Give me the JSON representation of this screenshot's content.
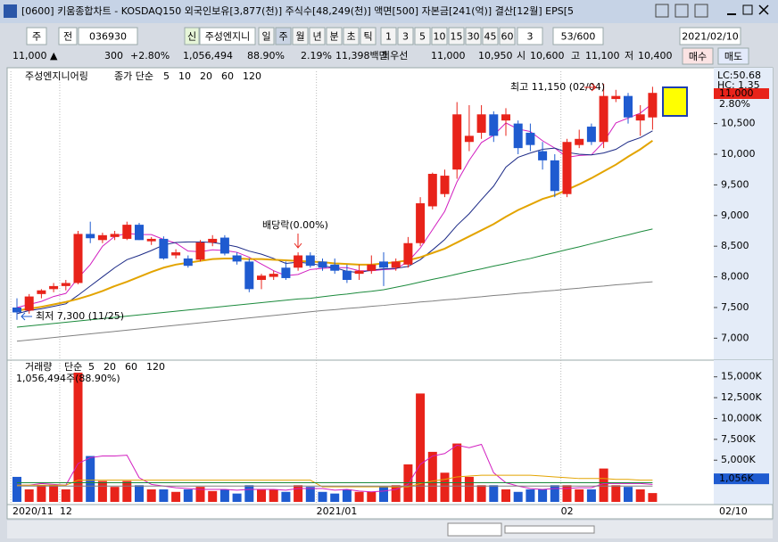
{
  "window": {
    "title": "[0600] 키움종합차트 - KOSDAQ150 외국인보유[3,877(천)] 주식수[48,249(천)] 액면[500] 자본금[241(억)] 결산[12월] EPS[5"
  },
  "toolbar": {
    "period": "주",
    "prev": "전",
    "code": "036930",
    "credit": "신",
    "name": "주성엔지니",
    "intervals": [
      "일",
      "주",
      "월",
      "년",
      "분",
      "초",
      "틱"
    ],
    "minutes": [
      "1",
      "3",
      "5",
      "10",
      "15",
      "30",
      "45",
      "60"
    ],
    "count_input": "3",
    "count": "53/600",
    "date": "2021/02/10"
  },
  "info": {
    "price": "11,000 ▲",
    "change": "300",
    "rate": "+2.80%",
    "volume": "1,056,494",
    "vol_rate": "88.90%",
    "turnover": "2.19%",
    "amount": "11,398백만",
    "best_label": "최우선",
    "ask": "11,000",
    "bid": "10,950",
    "open_label": "시",
    "open": "10,600",
    "high_label": "고",
    "high": "11,100",
    "low_label": "저",
    "low": "10,400",
    "buy": "매수",
    "sell": "매도"
  },
  "chart_data": [
    {
      "type": "candlestick",
      "name": "주성엔지니어링",
      "ma_label": "종가 단순",
      "up_color": "#e8231a",
      "down_color": "#1f5bd0",
      "categories": [
        "2020/11",
        null,
        null,
        null,
        "12",
        null,
        null,
        null,
        null,
        null,
        null,
        null,
        null,
        null,
        null,
        null,
        null,
        null,
        null,
        null,
        null,
        null,
        null,
        null,
        null,
        "2021/01",
        null,
        null,
        null,
        null,
        null,
        null,
        null,
        null,
        null,
        null,
        null,
        null,
        null,
        null,
        null,
        null,
        null,
        null,
        null,
        "02",
        null,
        null,
        null,
        null,
        null,
        null,
        null
      ],
      "open": [
        7500,
        7450,
        7720,
        7800,
        7850,
        7900,
        8700,
        8600,
        8650,
        8620,
        8850,
        8580,
        8620,
        8350,
        8300,
        8280,
        8560,
        8640,
        8350,
        8250,
        7950,
        8000,
        8150,
        8150,
        8350,
        8250,
        8200,
        8100,
        8050,
        8100,
        8250,
        8150,
        8200,
        8550,
        9150,
        9350,
        9750,
        10200,
        10350,
        10650,
        10550,
        10500,
        10350,
        10050,
        9900,
        9350,
        10150,
        10450,
        10200,
        10900,
        10950,
        10550,
        10600
      ],
      "high": [
        7650,
        7720,
        7800,
        7900,
        7950,
        8750,
        8900,
        8720,
        8750,
        8900,
        8880,
        8650,
        8660,
        8450,
        8350,
        8600,
        8680,
        8680,
        8400,
        8300,
        8050,
        8100,
        8250,
        8400,
        8400,
        8300,
        8300,
        8200,
        8200,
        8350,
        8400,
        8300,
        8650,
        9300,
        9700,
        9750,
        10850,
        10800,
        10800,
        10700,
        10750,
        10550,
        10500,
        10200,
        10000,
        10250,
        10400,
        10500,
        11150,
        11050,
        11000,
        10800,
        11100
      ],
      "low": [
        7300,
        7400,
        7650,
        7750,
        7780,
        7880,
        8550,
        8550,
        8600,
        8600,
        8600,
        8520,
        8280,
        8300,
        8150,
        8250,
        8500,
        8350,
        8200,
        7750,
        7800,
        7950,
        7950,
        8100,
        8150,
        8100,
        8050,
        7900,
        7950,
        8050,
        7850,
        8100,
        8150,
        8500,
        9100,
        9300,
        9600,
        10050,
        10250,
        10200,
        10300,
        10000,
        10050,
        9750,
        9300,
        9300,
        10100,
        10150,
        10100,
        10850,
        10500,
        10300,
        10400
      ],
      "close": [
        7420,
        7680,
        7780,
        7850,
        7900,
        8700,
        8630,
        8680,
        8700,
        8850,
        8600,
        8620,
        8300,
        8400,
        8180,
        8560,
        8620,
        8380,
        8250,
        7800,
        8020,
        8050,
        7980,
        8350,
        8180,
        8150,
        8100,
        7950,
        8100,
        8200,
        8150,
        8250,
        8550,
        9200,
        9680,
        9650,
        10650,
        10300,
        10650,
        10300,
        10650,
        10100,
        10150,
        9900,
        9400,
        10200,
        10250,
        10200,
        10950,
        10950,
        10600,
        10650,
        11000
      ],
      "series": [
        {
          "name": "5",
          "color": "#d21fc0",
          "values": [
            7500,
            7550,
            7600,
            7680,
            7730,
            7980,
            8200,
            8500,
            8660,
            8710,
            8690,
            8690,
            8610,
            8550,
            8420,
            8410,
            8440,
            8430,
            8400,
            8320,
            8210,
            8100,
            8020,
            8040,
            8120,
            8140,
            8150,
            8150,
            8100,
            8100,
            8120,
            8130,
            8250,
            8470,
            8770,
            9070,
            9550,
            9900,
            10190,
            10310,
            10510,
            10410,
            10370,
            10220,
            10100,
            9950,
            9980,
            9990,
            10200,
            10510,
            10590,
            10670,
            10830
          ]
        },
        {
          "name": "10",
          "color": "#1c2a86",
          "values": [
            7400,
            7450,
            7480,
            7520,
            7560,
            7700,
            7850,
            8000,
            8150,
            8280,
            8350,
            8430,
            8520,
            8560,
            8570,
            8570,
            8560,
            8530,
            8490,
            8420,
            8370,
            8300,
            8220,
            8240,
            8220,
            8180,
            8150,
            8090,
            8070,
            8110,
            8130,
            8140,
            8170,
            8280,
            8440,
            8610,
            8840,
            9030,
            9260,
            9480,
            9790,
            9950,
            10020,
            10080,
            10100,
            10030,
            10000,
            9990,
            10020,
            10080,
            10200,
            10270,
            10380
          ]
        },
        {
          "name": "20",
          "color": "#e3a400",
          "values": [
            7450,
            7480,
            7510,
            7550,
            7590,
            7640,
            7700,
            7770,
            7850,
            7920,
            8000,
            8080,
            8150,
            8200,
            8230,
            8260,
            8290,
            8300,
            8300,
            8290,
            8290,
            8280,
            8270,
            8260,
            8250,
            8240,
            8220,
            8210,
            8200,
            8200,
            8220,
            8240,
            8270,
            8320,
            8390,
            8460,
            8560,
            8660,
            8760,
            8860,
            8980,
            9090,
            9180,
            9270,
            9330,
            9420,
            9510,
            9610,
            9720,
            9830,
            9960,
            10080,
            10220
          ]
        },
        {
          "name": "60",
          "color": "#1b8a3c",
          "values": [
            7180,
            7200,
            7220,
            7240,
            7260,
            7280,
            7300,
            7320,
            7340,
            7360,
            7380,
            7400,
            7420,
            7440,
            7460,
            7480,
            7500,
            7520,
            7540,
            7560,
            7580,
            7600,
            7620,
            7640,
            7650,
            7675,
            7700,
            7720,
            7745,
            7765,
            7790,
            7830,
            7870,
            7915,
            7960,
            8000,
            8045,
            8090,
            8130,
            8175,
            8215,
            8260,
            8300,
            8350,
            8395,
            8445,
            8490,
            8540,
            8590,
            8640,
            8685,
            8735,
            8780
          ]
        },
        {
          "name": "120",
          "color": "#808080",
          "values": [
            6950,
            6970,
            6990,
            7010,
            7030,
            7050,
            7070,
            7090,
            7110,
            7130,
            7150,
            7170,
            7190,
            7210,
            7230,
            7250,
            7270,
            7290,
            7310,
            7330,
            7350,
            7370,
            7390,
            7410,
            7430,
            7450,
            7465,
            7485,
            7500,
            7520,
            7535,
            7555,
            7570,
            7590,
            7605,
            7625,
            7640,
            7660,
            7675,
            7695,
            7710,
            7730,
            7745,
            7765,
            7780,
            7800,
            7815,
            7835,
            7850,
            7870,
            7885,
            7905,
            7920
          ]
        }
      ],
      "ylim": [
        6700,
        11352
      ],
      "yticks": [
        {
          "value": 7000,
          "label": "7,000"
        },
        {
          "value": 7500,
          "label": "7,500"
        },
        {
          "value": 8000,
          "label": "8,000"
        },
        {
          "value": 8500,
          "label": "8,500"
        },
        {
          "value": 9000,
          "label": "9,000"
        },
        {
          "value": 9500,
          "label": "9,500"
        },
        {
          "value": 10000,
          "label": "10,000"
        },
        {
          "value": 10500,
          "label": "10,500"
        },
        {
          "value": 11000,
          "label": "11,000"
        }
      ],
      "current_label": "11,000",
      "current_rate": "2.80%",
      "lc": "LC:50.68",
      "hc": "HC: 1.35",
      "annotations": [
        "최고 11,150 (02/04)",
        "최저 7,300 (11/25)",
        "배당락(0.00%)"
      ],
      "last_date": "02/10"
    },
    {
      "type": "bar",
      "name": "거래량",
      "ma_label": "단순",
      "info": "1,056,494주(88.90%)",
      "values": [
        3000,
        1500,
        2000,
        2000,
        1500,
        15500,
        5500,
        2500,
        1800,
        2500,
        2000,
        1500,
        1500,
        1200,
        1500,
        1800,
        1300,
        1500,
        1000,
        2000,
        1500,
        1500,
        1200,
        2000,
        1800,
        1200,
        1000,
        1500,
        1200,
        1200,
        1800,
        2000,
        4500,
        13000,
        6000,
        3500,
        7000,
        3000,
        2000,
        2000,
        1500,
        1200,
        1500,
        1500,
        2000,
        2000,
        1500,
        1500,
        4000,
        2000,
        1800,
        1500,
        1056.494
      ],
      "value_labels": [
        null,
        null,
        null,
        null,
        null,
        null,
        null,
        null,
        null,
        null,
        null,
        null,
        null,
        null,
        null,
        null,
        null,
        null,
        null,
        null,
        null,
        null,
        null,
        null,
        null,
        null,
        null,
        null,
        null,
        null,
        null,
        null,
        null,
        null,
        null,
        null,
        null,
        null,
        null,
        null,
        null,
        null,
        null,
        null,
        null,
        null,
        null,
        null,
        null,
        null,
        null,
        null,
        "1,056K"
      ],
      "series": [
        {
          "name": "5",
          "color": "#d21fc0",
          "values": [
            2000,
            2000,
            2200,
            2100,
            2000,
            4600,
            5300,
            5500,
            5500,
            5600,
            2900,
            2100,
            1900,
            1700,
            1600,
            1500,
            1500,
            1500,
            1400,
            1500,
            1500,
            1500,
            1400,
            1600,
            1600,
            1600,
            1400,
            1500,
            1300,
            1200,
            1300,
            1500,
            2100,
            4500,
            5500,
            5800,
            6800,
            6500,
            6900,
            3500,
            2300,
            1900,
            1600,
            1500,
            1600,
            1600,
            1700,
            1700,
            2200,
            2200,
            2200,
            2200,
            2100
          ]
        },
        {
          "name": "20",
          "color": "#e3a400",
          "values": [
            2000,
            2000,
            2000,
            2000,
            2000,
            2600,
            2600,
            2600,
            2600,
            2600,
            2600,
            2600,
            2600,
            2600,
            2600,
            2600,
            2600,
            2600,
            2600,
            2600,
            2600,
            2600,
            2600,
            2600,
            2600,
            1800,
            1800,
            1800,
            1800,
            1800,
            1800,
            1800,
            1800,
            2200,
            2500,
            2700,
            3000,
            3100,
            3200,
            3200,
            3200,
            3200,
            3200,
            3100,
            3000,
            2900,
            2800,
            2800,
            2800,
            2700,
            2700,
            2600,
            2600
          ]
        },
        {
          "name": "60",
          "color": "#1b8a3c",
          "values": [
            2300,
            2300,
            2300,
            2300,
            2300,
            2300,
            2300,
            2300,
            2300,
            2300,
            2300,
            2300,
            2300,
            2300,
            2300,
            2300,
            2300,
            2300,
            2300,
            2300,
            2300,
            2300,
            2300,
            2300,
            2300,
            2300,
            2300,
            2300,
            2300,
            2300,
            2300,
            2300,
            2300,
            2300,
            2300,
            2300,
            2300,
            2300,
            2300,
            2300,
            2300,
            2300,
            2300,
            2300,
            2300,
            2300,
            2300,
            2300,
            2300,
            2300,
            2300,
            2300,
            2300
          ]
        },
        {
          "name": "120",
          "color": "#808080",
          "values": [
            1900,
            1900,
            1900,
            1900,
            1900,
            1900,
            1900,
            1900,
            1900,
            1900,
            1900,
            1900,
            1900,
            1900,
            1900,
            1900,
            1900,
            1900,
            1900,
            1900,
            1900,
            1900,
            1900,
            1900,
            1900,
            1900,
            1900,
            1900,
            1900,
            1900,
            1900,
            1900,
            1900,
            1900,
            1900,
            1900,
            1900,
            1900,
            1900,
            1900,
            1900,
            1900,
            1900,
            1900,
            1900,
            1900,
            1900,
            1900,
            1900,
            1900,
            1900,
            1900,
            1900
          ]
        }
      ],
      "ylim": [
        0,
        17000
      ],
      "yticks": [
        {
          "value": 5000,
          "label": "5,000K"
        },
        {
          "value": 7500,
          "label": "7,500K"
        },
        {
          "value": 10000,
          "label": "10,000K"
        },
        {
          "value": 12500,
          "label": "12,500K"
        },
        {
          "value": 15000,
          "label": "15,000K"
        }
      ]
    }
  ]
}
